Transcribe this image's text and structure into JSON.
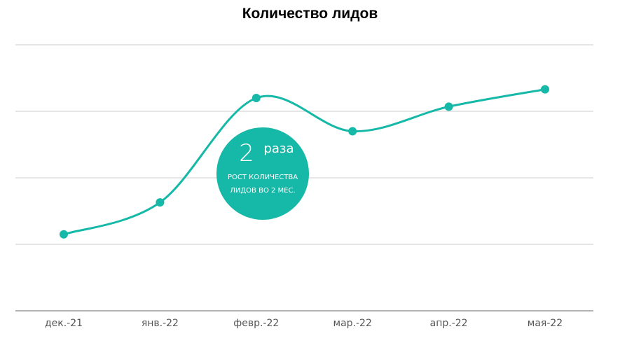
{
  "chart_data": {
    "type": "line",
    "title": "Количество лидов",
    "categories": [
      "дек.-21",
      "янв.-22",
      "февр.-22",
      "мар.-22",
      "апр.-22",
      "мая-22"
    ],
    "series": [
      {
        "values": [
          1.15,
          1.63,
          3.2,
          2.7,
          3.07,
          3.33
        ]
      }
    ],
    "ylim": [
      0,
      4
    ],
    "grid": true,
    "color": "#16B8A8",
    "annotation": {
      "value": "2",
      "unit": "раза",
      "line1": "РОСТ КОЛИЧЕСТВА",
      "line2": "ЛИДОВ ВО  2 МЕС."
    }
  }
}
